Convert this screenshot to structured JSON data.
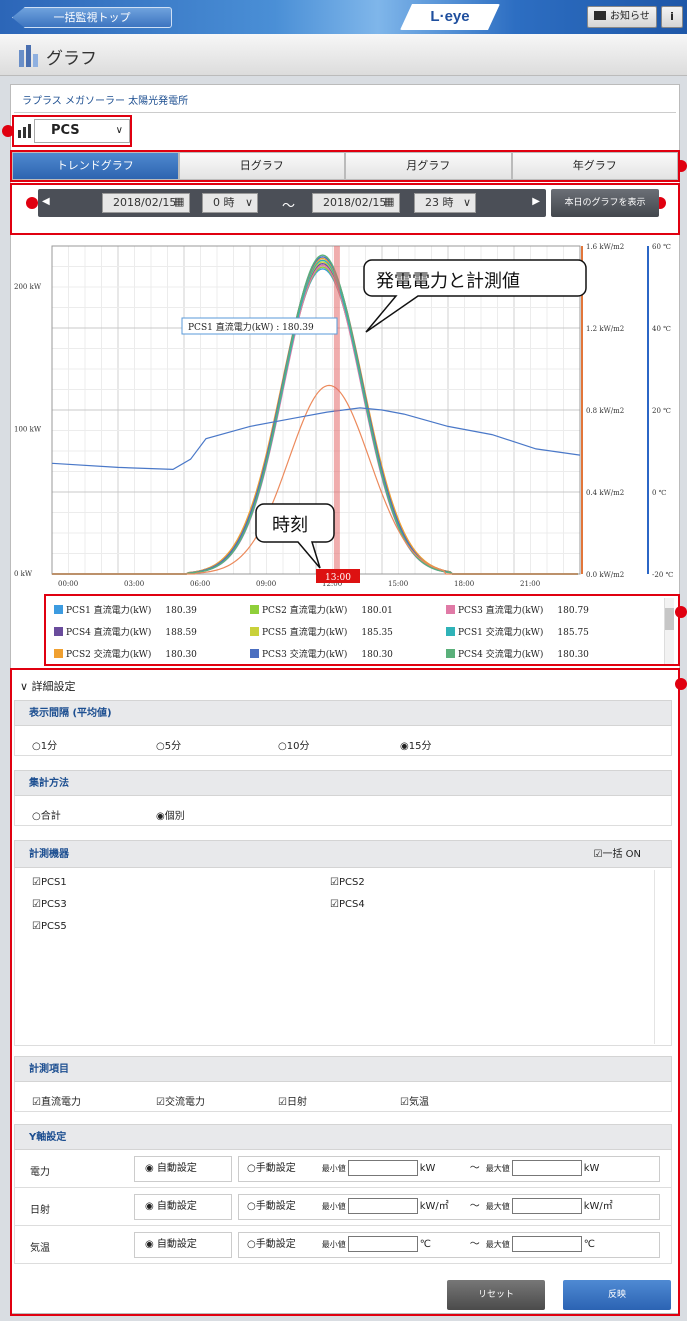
{
  "header": {
    "back_label": "一括監視トップ",
    "brand": "L·eye",
    "notice_label": "お知らせ",
    "info_label": "i"
  },
  "page": {
    "title": "グラフ",
    "plant": "ラプラス メガソーラー 太陽光発電所"
  },
  "device_select": {
    "value": "PCS"
  },
  "tabs": [
    {
      "label": "トレンドグラフ"
    },
    {
      "label": "日グラフ"
    },
    {
      "label": "月グラフ"
    },
    {
      "label": "年グラフ"
    }
  ],
  "datebar": {
    "start_date": "2018/02/15",
    "start_hour": "0 時",
    "tilde": "〜",
    "end_date": "2018/02/15",
    "end_hour": "23 時",
    "show_today": "本日のグラフを表示"
  },
  "chart_data": {
    "type": "line",
    "x": [
      "00:00",
      "03:00",
      "06:00",
      "09:00",
      "12:00",
      "15:00",
      "18:00",
      "21:00"
    ],
    "y_left_ticks": [
      "0 kW",
      "100 kW",
      "200 kW"
    ],
    "y_right1_ticks": [
      "0.0 kW/m2",
      "0.4 kW/m2",
      "0.8 kW/m2",
      "1.2 kW/m2",
      "1.6 kW/m2"
    ],
    "y_right2_ticks": [
      "-20 ℃",
      "0 ℃",
      "20 ℃",
      "40 ℃",
      "60 ℃"
    ],
    "cursor_time": "13:00",
    "tooltip": "PCS1 直流電力(kW) : 180.39",
    "callout_value": "発電電力と計測値",
    "callout_time": "時刻",
    "series": [
      {
        "name": "PCS1 直流電力(kW)",
        "value": "180.39",
        "color": "#3c9be0"
      },
      {
        "name": "PCS2 直流電力(kW)",
        "value": "180.01",
        "color": "#8fcf3a"
      },
      {
        "name": "PCS3 直流電力(kW)",
        "value": "180.79",
        "color": "#e07aa6"
      },
      {
        "name": "PCS4 直流電力(kW)",
        "value": "188.59",
        "color": "#6a4c9c"
      },
      {
        "name": "PCS5 直流電力(kW)",
        "value": "185.35",
        "color": "#c9d13a"
      },
      {
        "name": "PCS1 交流電力(kW)",
        "value": "185.75",
        "color": "#2fb3b8"
      },
      {
        "name": "PCS2 交流電力(kW)",
        "value": "180.30",
        "color": "#f0a030"
      },
      {
        "name": "PCS3 交流電力(kW)",
        "value": "180.30",
        "color": "#4a6ec0"
      },
      {
        "name": "PCS4 交流電力(kW)",
        "value": "180.30",
        "color": "#5ab07a"
      }
    ]
  },
  "details": {
    "toggle": "詳細設定",
    "interval": {
      "title": "表示間隔 (平均値)",
      "options": [
        "1分",
        "5分",
        "10分",
        "15分"
      ],
      "selected": "15分"
    },
    "aggregate": {
      "title": "集計方法",
      "options": [
        "合計",
        "個別"
      ],
      "selected": "個別"
    },
    "devices": {
      "title": "計測機器",
      "all_on": "一括 ON",
      "items": [
        "PCS1",
        "PCS2",
        "PCS3",
        "PCS4",
        "PCS5"
      ]
    },
    "items": {
      "title": "計測項目",
      "options": [
        "直流電力",
        "交流電力",
        "日射",
        "気温"
      ]
    },
    "yaxis": {
      "title": "Y軸設定",
      "rows": [
        {
          "label": "電力",
          "auto": "自動設定",
          "manual": "手動設定",
          "min": "最小値",
          "unit": "kW",
          "max": "最大値"
        },
        {
          "label": "日射",
          "auto": "自動設定",
          "manual": "手動設定",
          "min": "最小値",
          "unit": "kW/㎡",
          "max": "最大値"
        },
        {
          "label": "気温",
          "auto": "自動設定",
          "manual": "手動設定",
          "min": "最小値",
          "unit": "℃",
          "max": "最大値"
        }
      ],
      "tilde": "〜"
    },
    "reset": "リセット",
    "apply": "反映"
  }
}
